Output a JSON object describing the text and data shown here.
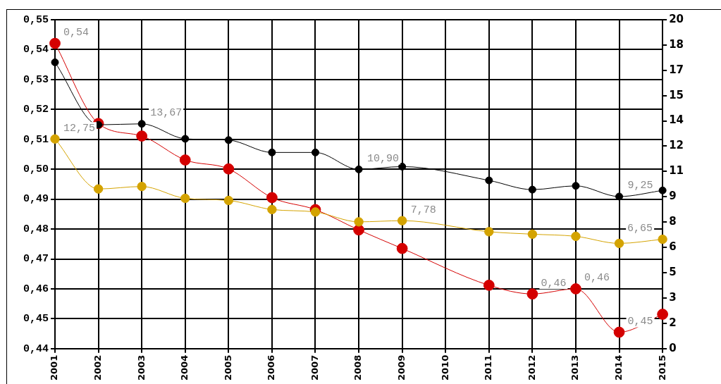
{
  "chart_data": {
    "type": "line",
    "categories": [
      "2001",
      "2002",
      "2003",
      "2004",
      "2005",
      "2006",
      "2007",
      "2008",
      "2009",
      "2010",
      "2011",
      "2012",
      "2013",
      "2014",
      "2015"
    ],
    "series": [
      {
        "color": "#000000",
        "axis": "y2",
        "values": [
          17.41,
          13.61,
          13.67,
          12.76,
          12.68,
          11.93,
          11.93,
          10.9,
          11.07,
          null,
          10.23,
          9.67,
          9.9,
          9.25,
          9.62
        ],
        "value_labels": [
          null,
          null,
          "13,67",
          null,
          null,
          null,
          null,
          "10,90",
          null,
          null,
          null,
          null,
          null,
          "9,25",
          null
        ]
      },
      {
        "color": "#d4a300",
        "axis": "y2",
        "values": [
          12.75,
          9.71,
          9.86,
          9.14,
          9.01,
          8.46,
          8.31,
          7.71,
          7.78,
          null,
          7.11,
          6.96,
          6.83,
          6.4,
          6.65
        ],
        "value_labels": [
          "12,75",
          null,
          null,
          null,
          null,
          null,
          null,
          null,
          "7,78",
          null,
          null,
          null,
          null,
          null,
          "6,65"
        ]
      },
      {
        "color": "#d40000",
        "values": [
          0.5421,
          0.5153,
          0.5111,
          0.5031,
          0.5001,
          0.4905,
          0.4865,
          0.4797,
          0.4735,
          null,
          0.4612,
          0.4583,
          0.46,
          0.4455,
          0.4515
        ],
        "value_labels": [
          "0,54",
          null,
          null,
          null,
          null,
          null,
          null,
          null,
          null,
          null,
          null,
          "0,46",
          "0,46",
          "0,45",
          null
        ]
      }
    ],
    "ylim": [
      0.44,
      0.55
    ],
    "yticks": [
      {
        "value": 0.44,
        "label": "0,44"
      },
      {
        "value": 0.45,
        "label": "0,45"
      },
      {
        "value": 0.46,
        "label": "0,46"
      },
      {
        "value": 0.47,
        "label": "0,47"
      },
      {
        "value": 0.48,
        "label": "0,48"
      },
      {
        "value": 0.49,
        "label": "0,49"
      },
      {
        "value": 0.5,
        "label": "0,50"
      },
      {
        "value": 0.51,
        "label": "0,51"
      },
      {
        "value": 0.52,
        "label": "0,52"
      },
      {
        "value": 0.53,
        "label": "0,53"
      },
      {
        "value": 0.54,
        "label": "0,54"
      },
      {
        "value": 0.55,
        "label": "0,55"
      }
    ],
    "y2lim": [
      0,
      20
    ],
    "y2ticks": [
      0,
      {
        "value": 1.54,
        "label": "2"
      },
      {
        "value": 3.08,
        "label": "3"
      },
      {
        "value": 4.62,
        "label": "5"
      },
      {
        "value": 6.15,
        "label": "6"
      },
      {
        "value": 7.69,
        "label": "8"
      },
      {
        "value": 9.23,
        "label": "9"
      },
      {
        "value": 10.77,
        "label": "11"
      },
      {
        "value": 12.31,
        "label": "12"
      },
      {
        "value": 13.85,
        "label": "14"
      },
      {
        "value": 15.38,
        "label": "15"
      },
      {
        "value": 16.92,
        "label": "17"
      },
      {
        "value": 18.46,
        "label": "18"
      },
      20
    ],
    "grid": true,
    "legend": false,
    "marker": "circle",
    "line_style": "solid"
  }
}
